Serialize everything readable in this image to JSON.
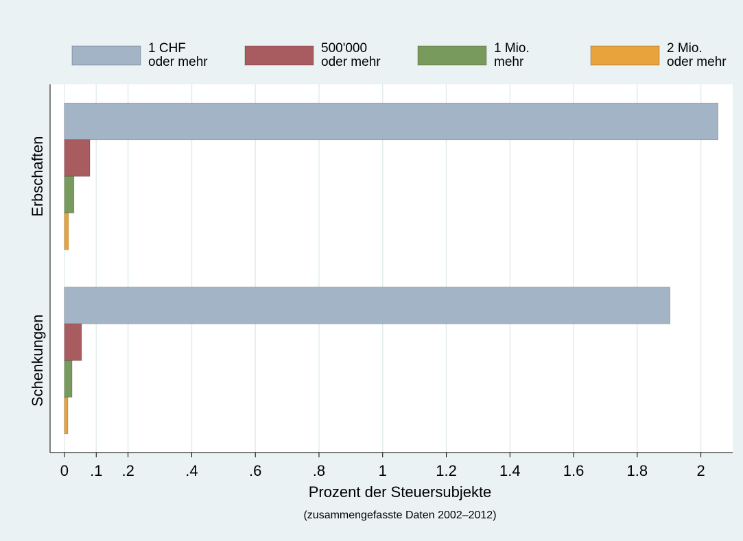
{
  "chart_data": {
    "type": "hbar",
    "categories": [
      "Erbschaften",
      "Schenkungen"
    ],
    "series": [
      {
        "name": "1 CHF\noder mehr",
        "color": "#a3b4c6",
        "values": [
          2.054,
          1.903
        ]
      },
      {
        "name": "500'000\noder mehr",
        "color": "#a95c60",
        "values": [
          0.08,
          0.054
        ]
      },
      {
        "name": "1 Mio.\nmehr",
        "color": "#789a5c",
        "values": [
          0.03,
          0.024
        ]
      },
      {
        "name": "2 Mio.\noder mehr",
        "color": "#e8a33c",
        "values": [
          0.013,
          0.011
        ]
      }
    ],
    "x_label": "Prozent der Steuersubjekte",
    "note": "(zusammengefasste Daten 2002–2012)",
    "xlim": [
      -0.045,
      2.1
    ],
    "xticks": [
      0,
      {
        "value": 0.1,
        "label": ".1"
      },
      {
        "value": 0.2,
        "label": ".2"
      },
      {
        "value": 0.4,
        "label": ".4"
      },
      {
        "value": 0.6,
        "label": ".6"
      },
      {
        "value": 0.8,
        "label": ".8"
      },
      1,
      1.2,
      1.4,
      1.6,
      1.8,
      2
    ],
    "grid": true
  }
}
